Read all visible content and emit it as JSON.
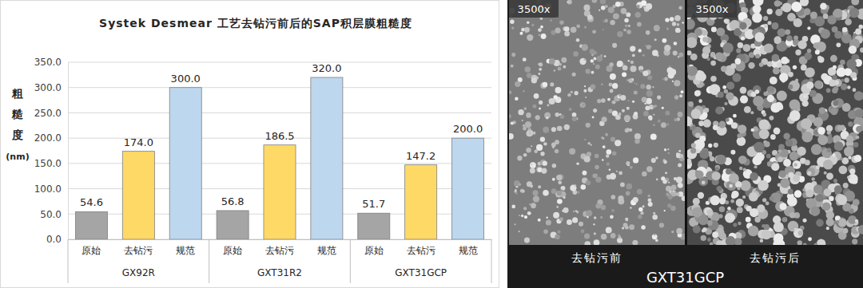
{
  "chart_data": {
    "type": "bar",
    "title": "Systek Desmear 工艺去钻污前后的SAP积层膜粗糙度",
    "y_label": [
      "粗",
      "糙",
      "度",
      "(nm)"
    ],
    "groups": [
      "GX92R",
      "GXT31R2",
      "GXT31GCP"
    ],
    "categories": [
      "原始",
      "去钻污",
      "规范",
      "原始",
      "去钻污",
      "规范",
      "原始",
      "去钻污",
      "规范"
    ],
    "values": [
      54.6,
      174.0,
      300.0,
      56.8,
      186.5,
      320.0,
      51.7,
      147.2,
      200.0
    ],
    "value_labels": [
      "54.6",
      "174.0",
      "300.0",
      "56.8",
      "186.5",
      "320.0",
      "51.7",
      "147.2",
      "200.0"
    ],
    "colors": [
      "#a5a5a5",
      "#ffd966",
      "#bdd7ee",
      "#a5a5a5",
      "#ffd966",
      "#bdd7ee",
      "#a5a5a5",
      "#ffd966",
      "#bdd7ee"
    ],
    "ylim": [
      0,
      350
    ],
    "yticks": [
      {
        "value": 0,
        "label": "0.0"
      },
      {
        "value": 50,
        "label": "50.0"
      },
      {
        "value": 100,
        "label": "100.0"
      },
      {
        "value": 150,
        "label": "150.0"
      },
      {
        "value": 200,
        "label": "200.0"
      },
      {
        "value": 250,
        "label": "250.0"
      },
      {
        "value": 300,
        "label": "300.0"
      },
      {
        "value": 350,
        "label": "350.0"
      }
    ],
    "grid": true,
    "data_labels": true
  },
  "image_panel": {
    "magnification": "3500x",
    "panels": [
      "去钻污前",
      "去钻污后"
    ],
    "caption": "GXT31GCP"
  }
}
